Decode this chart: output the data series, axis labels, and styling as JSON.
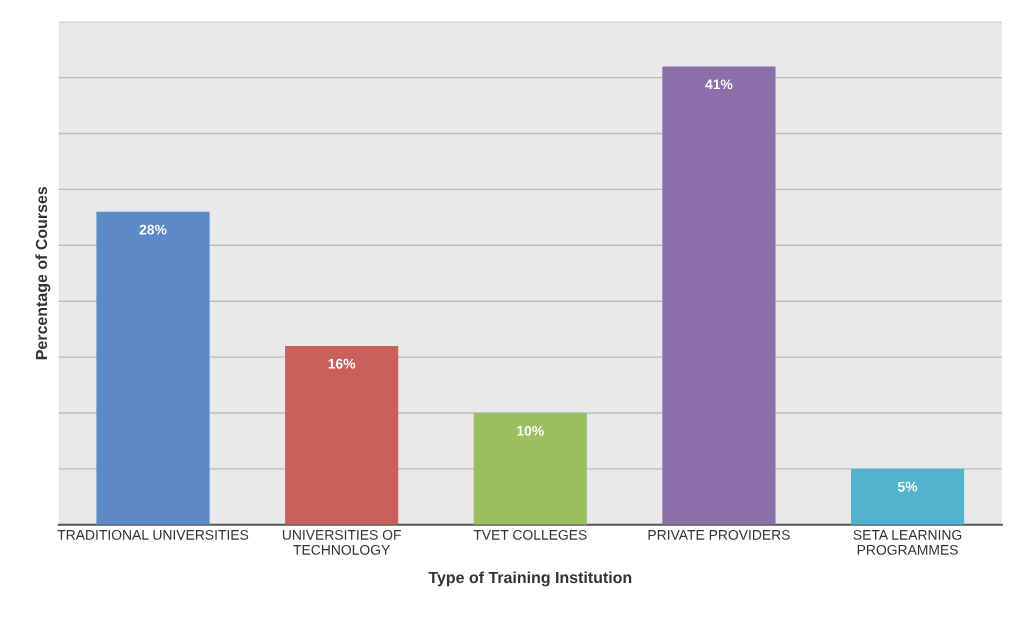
{
  "chart_data": {
    "type": "bar",
    "xlabel": "Type of Training Institution",
    "ylabel": "Percentage of Courses",
    "categories": [
      "TRADITIONAL UNIVERSITIES",
      "UNIVERSITIES OF\nTECHNOLOGY",
      "TVET COLLEGES",
      "PRIVATE PROVIDERS",
      "SETA LEARNING\nPROGRAMMES"
    ],
    "values": [
      28,
      16,
      10,
      41,
      5
    ],
    "colors": [
      "#5b8ac6",
      "#c9605c",
      "#9bbf5e",
      "#8a6fa8",
      "#52b3cc"
    ],
    "value_labels": [
      "28%",
      "16%",
      "10%",
      "41%",
      "5%"
    ],
    "ylim": [
      0,
      45
    ],
    "yticks": [
      {
        "value": 0,
        "label": null
      },
      {
        "value": 5,
        "label": null
      },
      {
        "value": 10,
        "label": null
      },
      {
        "value": 15,
        "label": null
      },
      {
        "value": 20,
        "label": null
      },
      {
        "value": 25,
        "label": null
      },
      {
        "value": 30,
        "label": null
      },
      {
        "value": 35,
        "label": null
      },
      {
        "value": 40,
        "label": null
      },
      {
        "value": 45,
        "label": null
      }
    ],
    "grid": "y",
    "tick_labels": "x"
  }
}
